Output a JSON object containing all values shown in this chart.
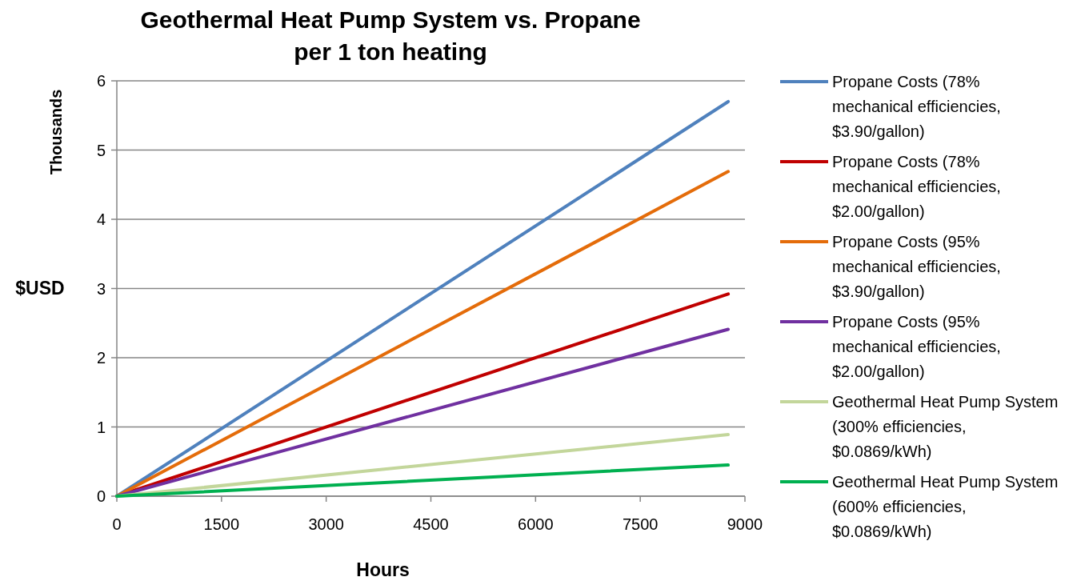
{
  "chart_data": {
    "type": "line",
    "title": "Geothermal Heat Pump System vs. Propane per 1 ton heating",
    "xlabel": "Hours",
    "ylabel": "$USD",
    "annotations": [
      "Thousands"
    ],
    "xlim": [
      0,
      9000
    ],
    "xticks": [
      0,
      1500,
      3000,
      4500,
      6000,
      7500,
      9000
    ],
    "ylim": [
      0,
      6
    ],
    "yticks": [
      0,
      1,
      2,
      3,
      4,
      5,
      6
    ],
    "grid": "y",
    "legend": "right",
    "line_style": "solid",
    "x": [
      0,
      8760
    ],
    "series": [
      {
        "name": "Propane Costs (78% mechanical efficiencies, $3.90/gallon)",
        "color": "#4f81bd",
        "values": [
          0,
          5.7
        ]
      },
      {
        "name": "Propane Costs (78% mechanical efficiencies, $2.00/gallon)",
        "color": "#c00000",
        "values": [
          0,
          2.92
        ]
      },
      {
        "name": "Propane Costs (95% mechanical efficiencies, $3.90/gallon)",
        "color": "#e46c0a",
        "values": [
          0,
          4.69
        ]
      },
      {
        "name": "Propane Costs (95% mechanical efficiencies, $2.00/gallon)",
        "color": "#7030a0",
        "values": [
          0,
          2.41
        ]
      },
      {
        "name": "Geothermal Heat Pump System (300% efficiencies, $0.0869/kWh)",
        "color": "#c3d69b",
        "values": [
          0,
          0.89
        ]
      },
      {
        "name": "Geothermal Heat Pump System (600% efficiencies, $0.0869/kWh)",
        "color": "#00b050",
        "values": [
          0,
          0.45
        ]
      }
    ]
  }
}
